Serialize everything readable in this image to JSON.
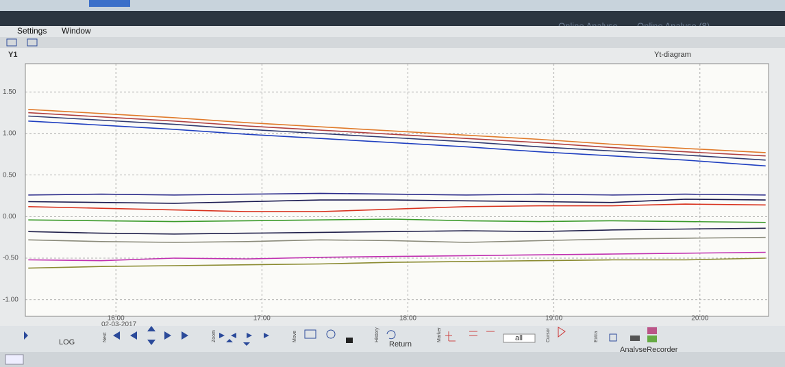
{
  "window": {
    "titles": [
      "Online Analyse",
      "Online Analyse (8)"
    ],
    "menu": [
      "Settings",
      "Window"
    ]
  },
  "chart_data": {
    "type": "line",
    "title": "Yt-diagram",
    "ylabel": "Y1",
    "x_date": "02-03-2017",
    "x": [
      15.4,
      15.9,
      16.4,
      16.9,
      17.4,
      17.9,
      18.4,
      18.9,
      19.4,
      19.9,
      20.45
    ],
    "xlim": [
      15.38,
      20.47
    ],
    "xticks": [
      {
        "value": 16,
        "label": "16:00"
      },
      {
        "value": 17,
        "label": "17:00"
      },
      {
        "value": 18,
        "label": "18:00"
      },
      {
        "value": 19,
        "label": "19:00"
      },
      {
        "value": 20,
        "label": "20:00"
      }
    ],
    "ylim": [
      -1.2,
      1.84
    ],
    "yticks": [
      {
        "value": 1.5,
        "label": "1.50"
      },
      {
        "value": 1,
        "label": "1.00"
      },
      {
        "value": 0.5,
        "label": "0.50"
      },
      {
        "value": 0,
        "label": "0.00"
      },
      {
        "value": -0.5,
        "label": "-0.50"
      },
      {
        "value": -1,
        "label": "-1.00"
      }
    ],
    "grid": true,
    "series": [
      {
        "color": "#e07a2a",
        "values": [
          1.29,
          1.24,
          1.19,
          1.13,
          1.08,
          1.03,
          0.98,
          0.93,
          0.87,
          0.82,
          0.77
        ]
      },
      {
        "color": "#b04040",
        "values": [
          1.25,
          1.2,
          1.15,
          1.09,
          1.04,
          0.99,
          0.94,
          0.89,
          0.83,
          0.78,
          0.73
        ]
      },
      {
        "color": "#303a70",
        "values": [
          1.21,
          1.16,
          1.11,
          1.05,
          1.0,
          0.95,
          0.9,
          0.84,
          0.79,
          0.74,
          0.68
        ]
      },
      {
        "color": "#1f3fc0",
        "values": [
          1.15,
          1.1,
          1.05,
          0.99,
          0.94,
          0.89,
          0.84,
          0.78,
          0.73,
          0.68,
          0.61
        ]
      },
      {
        "color": "#2a2a8a",
        "values": [
          0.26,
          0.27,
          0.26,
          0.27,
          0.28,
          0.27,
          0.26,
          0.27,
          0.26,
          0.27,
          0.26
        ]
      },
      {
        "color": "#1a1a50",
        "values": [
          0.18,
          0.17,
          0.16,
          0.18,
          0.2,
          0.2,
          0.19,
          0.18,
          0.17,
          0.21,
          0.2
        ]
      },
      {
        "color": "#d8321e",
        "values": [
          0.12,
          0.1,
          0.08,
          0.06,
          0.06,
          0.09,
          0.12,
          0.13,
          0.13,
          0.15,
          0.14
        ]
      },
      {
        "color": "#3a9a2a",
        "values": [
          -0.04,
          -0.05,
          -0.06,
          -0.05,
          -0.04,
          -0.03,
          -0.05,
          -0.06,
          -0.05,
          -0.06,
          -0.07
        ]
      },
      {
        "color": "#20204a",
        "values": [
          -0.18,
          -0.2,
          -0.21,
          -0.2,
          -0.19,
          -0.18,
          -0.17,
          -0.18,
          -0.16,
          -0.15,
          -0.14
        ]
      },
      {
        "color": "#8a8a7a",
        "values": [
          -0.28,
          -0.3,
          -0.31,
          -0.3,
          -0.28,
          -0.29,
          -0.31,
          -0.29,
          -0.27,
          -0.26,
          -0.25
        ]
      },
      {
        "color": "#c030b0",
        "values": [
          -0.52,
          -0.53,
          -0.5,
          -0.51,
          -0.49,
          -0.48,
          -0.47,
          -0.46,
          -0.45,
          -0.44,
          -0.43
        ]
      },
      {
        "color": "#8a8a30",
        "values": [
          -0.62,
          -0.6,
          -0.59,
          -0.58,
          -0.57,
          -0.55,
          -0.54,
          -0.53,
          -0.52,
          -0.52,
          -0.5
        ]
      }
    ]
  },
  "toolbar": {
    "groups": [
      "Next",
      "Zoom",
      "Move",
      "History",
      "Marker",
      "Cursor",
      "Extra"
    ],
    "log": "LOG",
    "return": "Return",
    "filter": "all",
    "recorder": "AnalyseRecorder"
  }
}
